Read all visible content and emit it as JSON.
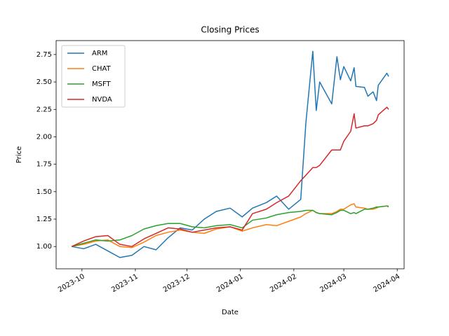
{
  "chart_data": {
    "type": "line",
    "title": "Closing Prices",
    "x_label": "Date",
    "y_label": "Price",
    "x": [
      "2023-09-25",
      "2023-10-02",
      "2023-10-09",
      "2023-10-16",
      "2023-10-23",
      "2023-10-30",
      "2023-11-06",
      "2023-11-13",
      "2023-11-20",
      "2023-11-27",
      "2023-12-04",
      "2023-12-11",
      "2023-12-18",
      "2023-12-26",
      "2024-01-02",
      "2024-01-08",
      "2024-01-16",
      "2024-01-22",
      "2024-01-29",
      "2024-02-05",
      "2024-02-08",
      "2024-02-12",
      "2024-02-14",
      "2024-02-16",
      "2024-02-23",
      "2024-02-26",
      "2024-02-28",
      "2024-03-01",
      "2024-03-05",
      "2024-03-07",
      "2024-03-08",
      "2024-03-13",
      "2024-03-15",
      "2024-03-18",
      "2024-03-20",
      "2024-03-21",
      "2024-03-26",
      "2024-03-27"
    ],
    "series": [
      {
        "name": "ARM",
        "color": "#1f77b4",
        "values": [
          1.0,
          0.98,
          1.02,
          0.96,
          0.9,
          0.92,
          1.0,
          0.97,
          1.08,
          1.17,
          1.15,
          1.25,
          1.32,
          1.35,
          1.27,
          1.35,
          1.4,
          1.46,
          1.34,
          1.43,
          2.13,
          2.78,
          2.24,
          2.5,
          2.3,
          2.73,
          2.52,
          2.64,
          2.51,
          2.63,
          2.46,
          2.45,
          2.37,
          2.41,
          2.33,
          2.47,
          2.58,
          2.55
        ]
      },
      {
        "name": "CHAT",
        "color": "#ff7f0e",
        "values": [
          1.0,
          1.02,
          1.05,
          1.06,
          1.0,
          0.99,
          1.04,
          1.1,
          1.13,
          1.15,
          1.13,
          1.12,
          1.16,
          1.18,
          1.14,
          1.17,
          1.2,
          1.19,
          1.23,
          1.27,
          1.3,
          1.33,
          1.31,
          1.3,
          1.3,
          1.32,
          1.34,
          1.34,
          1.38,
          1.39,
          1.36,
          1.35,
          1.34,
          1.34,
          1.35,
          1.36,
          1.37,
          1.37
        ]
      },
      {
        "name": "MSFT",
        "color": "#2ca02c",
        "values": [
          1.0,
          1.03,
          1.06,
          1.05,
          1.06,
          1.1,
          1.16,
          1.19,
          1.21,
          1.21,
          1.18,
          1.17,
          1.19,
          1.2,
          1.17,
          1.24,
          1.26,
          1.29,
          1.31,
          1.32,
          1.33,
          1.33,
          1.31,
          1.3,
          1.29,
          1.31,
          1.33,
          1.33,
          1.3,
          1.31,
          1.3,
          1.34,
          1.34,
          1.35,
          1.36,
          1.36,
          1.37,
          1.36
        ]
      },
      {
        "name": "NVDA",
        "color": "#d62728",
        "values": [
          1.0,
          1.05,
          1.09,
          1.1,
          1.02,
          1.0,
          1.07,
          1.12,
          1.17,
          1.16,
          1.13,
          1.15,
          1.17,
          1.18,
          1.15,
          1.3,
          1.34,
          1.4,
          1.46,
          1.6,
          1.65,
          1.72,
          1.72,
          1.74,
          1.88,
          1.88,
          1.88,
          1.96,
          2.05,
          2.21,
          2.08,
          2.1,
          2.1,
          2.12,
          2.15,
          2.2,
          2.27,
          2.25
        ]
      }
    ],
    "xlim": [
      "2023-09-16",
      "2024-04-05"
    ],
    "xticks": [
      {
        "value": "2023-10-01",
        "label": "2023-10"
      },
      {
        "value": "2023-11-01",
        "label": "2023-11"
      },
      {
        "value": "2023-12-01",
        "label": "2023-12"
      },
      {
        "value": "2024-01-01",
        "label": "2024-01"
      },
      {
        "value": "2024-02-01",
        "label": "2024-02"
      },
      {
        "value": "2024-03-01",
        "label": "2024-03"
      },
      {
        "value": "2024-04-01",
        "label": "2024-04"
      }
    ],
    "ylim": [
      0.797,
      2.877
    ],
    "yticks": [
      {
        "value": 1,
        "label": "1.00"
      },
      {
        "value": 1.25,
        "label": "1.25"
      },
      {
        "value": 1.5,
        "label": "1.50"
      },
      {
        "value": 1.75,
        "label": "1.75"
      },
      {
        "value": 2,
        "label": "2.00"
      },
      {
        "value": 2.25,
        "label": "2.25"
      },
      {
        "value": 2.5,
        "label": "2.50"
      },
      {
        "value": 2.75,
        "label": "2.75"
      }
    ],
    "grid": false,
    "legend": "upper-left"
  }
}
